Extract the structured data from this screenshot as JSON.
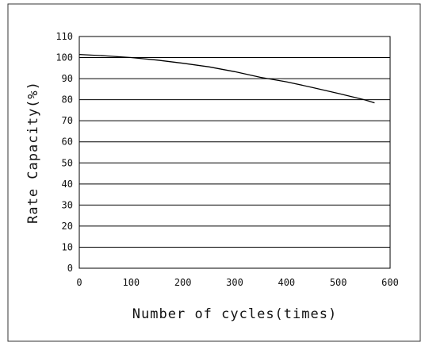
{
  "chart_data": {
    "type": "line",
    "title": "",
    "xlabel": "Number of cycles(times)",
    "ylabel": "Rate Capacity(%)",
    "xlim": [
      0,
      600
    ],
    "ylim": [
      0,
      110
    ],
    "x_ticks": [
      "0",
      "100",
      "200",
      "300",
      "400",
      "500",
      "600"
    ],
    "y_ticks": [
      "0",
      "10",
      "20",
      "30",
      "40",
      "50",
      "60",
      "70",
      "80",
      "90",
      "100",
      "110"
    ],
    "grid": "horizontal",
    "legend": "none",
    "series": [
      {
        "x": [
          0,
          50,
          100,
          150,
          200,
          250,
          300,
          350,
          400,
          450,
          500,
          550,
          570
        ],
        "y": [
          101.5,
          100.8,
          100,
          98.8,
          97.3,
          95.6,
          93.3,
          90.6,
          88.5,
          85.8,
          83,
          80,
          78.5
        ]
      }
    ],
    "colors": {
      "line": "#000000",
      "grid": "#000000",
      "frame": "#000000"
    }
  }
}
